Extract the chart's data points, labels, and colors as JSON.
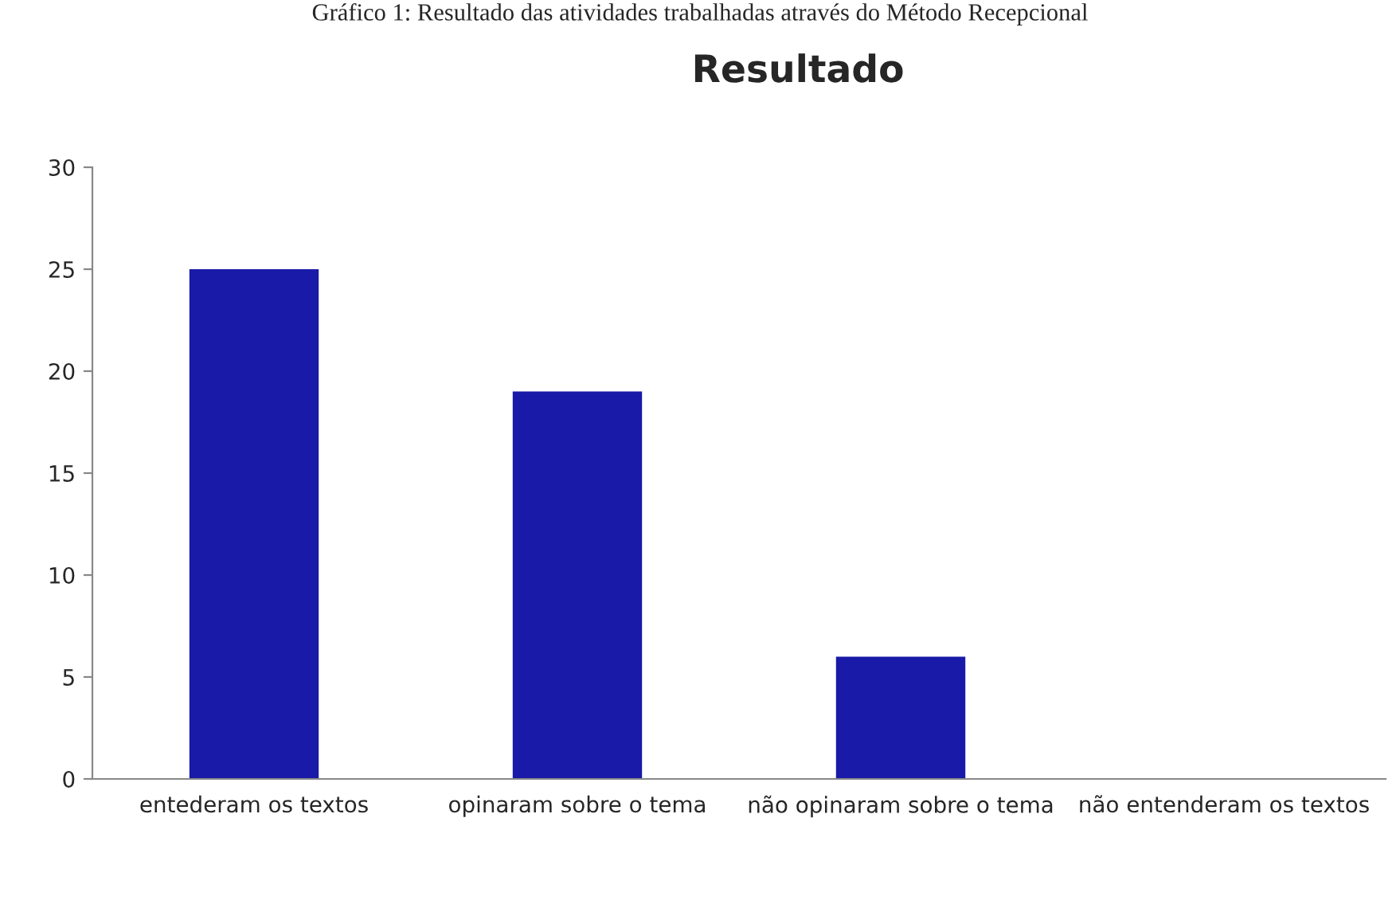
{
  "chart_data": {
    "type": "bar",
    "title": "Resultado",
    "annotations": [
      "Gráfico 1: Resultado das atividades trabalhadas através do Método Recepcional"
    ],
    "categories": [
      "entederam os textos",
      "opinaram sobre o tema",
      "não opinaram sobre o tema",
      "não entenderam os textos"
    ],
    "values": [
      25,
      19,
      6,
      0
    ],
    "color": "#1a1aa8",
    "ylim": [
      0,
      30
    ],
    "yticks": [
      0,
      5,
      10,
      15,
      20,
      25,
      30
    ],
    "grid": false,
    "legend": false
  }
}
